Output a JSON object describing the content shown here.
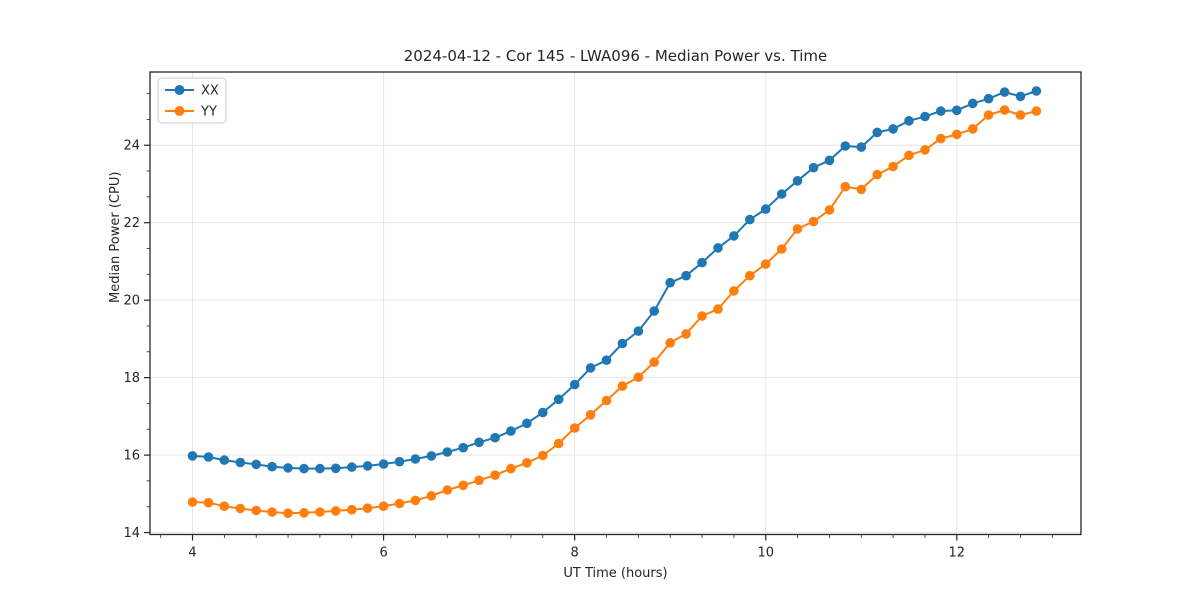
{
  "title": "2024-04-12 - Cor 145 - LWA096 - Median Power vs. Time",
  "chart_data": {
    "type": "line",
    "title": "2024-04-12 - Cor 145 - LWA096 - Median Power vs. Time",
    "xlabel": "UT Time (hours)",
    "ylabel": "Median Power (CPU)",
    "xlim": [
      3.555,
      13.3
    ],
    "ylim": [
      13.95,
      25.89
    ],
    "x_ticks": [
      4,
      6,
      8,
      10,
      12
    ],
    "x_tick_labels": [
      "4",
      "6",
      "8",
      "10",
      "12"
    ],
    "y_ticks": [
      14,
      16,
      18,
      20,
      22,
      24
    ],
    "y_tick_labels": [
      "14",
      "16",
      "18",
      "20",
      "22",
      "24"
    ],
    "x_minor_tick_step": 0.33333,
    "y_minor_tick_step": 0.66667,
    "grid": "major-only",
    "grid_color": "#e6e6e6",
    "spine_color": "#262626",
    "background_color": "#ffffff",
    "legend_position": "upper-left",
    "x": [
      4.0,
      4.167,
      4.333,
      4.5,
      4.667,
      4.833,
      5.0,
      5.167,
      5.333,
      5.5,
      5.667,
      5.833,
      6.0,
      6.167,
      6.333,
      6.5,
      6.667,
      6.833,
      7.0,
      7.167,
      7.333,
      7.5,
      7.667,
      7.833,
      8.0,
      8.167,
      8.333,
      8.5,
      8.667,
      8.833,
      9.0,
      9.167,
      9.333,
      9.5,
      9.667,
      9.833,
      10.0,
      10.167,
      10.333,
      10.5,
      10.667,
      10.833,
      11.0,
      11.167,
      11.333,
      11.5,
      11.667,
      11.833,
      12.0,
      12.167,
      12.333,
      12.5,
      12.667,
      12.833
    ],
    "series": [
      {
        "name": "XX",
        "color": "#1f77b4",
        "values": [
          15.98,
          15.95,
          15.87,
          15.81,
          15.76,
          15.7,
          15.67,
          15.65,
          15.65,
          15.66,
          15.69,
          15.72,
          15.77,
          15.83,
          15.9,
          15.98,
          16.08,
          16.19,
          16.33,
          16.45,
          16.62,
          16.82,
          17.1,
          17.44,
          17.82,
          18.25,
          18.45,
          18.88,
          19.2,
          19.72,
          20.45,
          20.63,
          20.97,
          21.35,
          21.66,
          22.08,
          22.35,
          22.74,
          23.08,
          23.42,
          23.61,
          23.98,
          23.95,
          24.33,
          24.42,
          24.63,
          24.74,
          24.88,
          24.9,
          25.08,
          25.2,
          25.37,
          25.26,
          25.4
        ]
      },
      {
        "name": "YY",
        "color": "#ff7f0e",
        "values": [
          14.79,
          14.77,
          14.68,
          14.62,
          14.57,
          14.53,
          14.5,
          14.51,
          14.53,
          14.56,
          14.59,
          14.63,
          14.68,
          14.75,
          14.83,
          14.95,
          15.1,
          15.22,
          15.35,
          15.48,
          15.65,
          15.8,
          15.99,
          16.3,
          16.7,
          17.04,
          17.41,
          17.78,
          18.01,
          18.4,
          18.9,
          19.13,
          19.59,
          19.77,
          20.24,
          20.63,
          20.93,
          21.32,
          21.84,
          22.03,
          22.33,
          22.93,
          22.86,
          23.24,
          23.45,
          23.74,
          23.88,
          24.17,
          24.28,
          24.42,
          24.78,
          24.91,
          24.78,
          24.88
        ]
      }
    ]
  }
}
